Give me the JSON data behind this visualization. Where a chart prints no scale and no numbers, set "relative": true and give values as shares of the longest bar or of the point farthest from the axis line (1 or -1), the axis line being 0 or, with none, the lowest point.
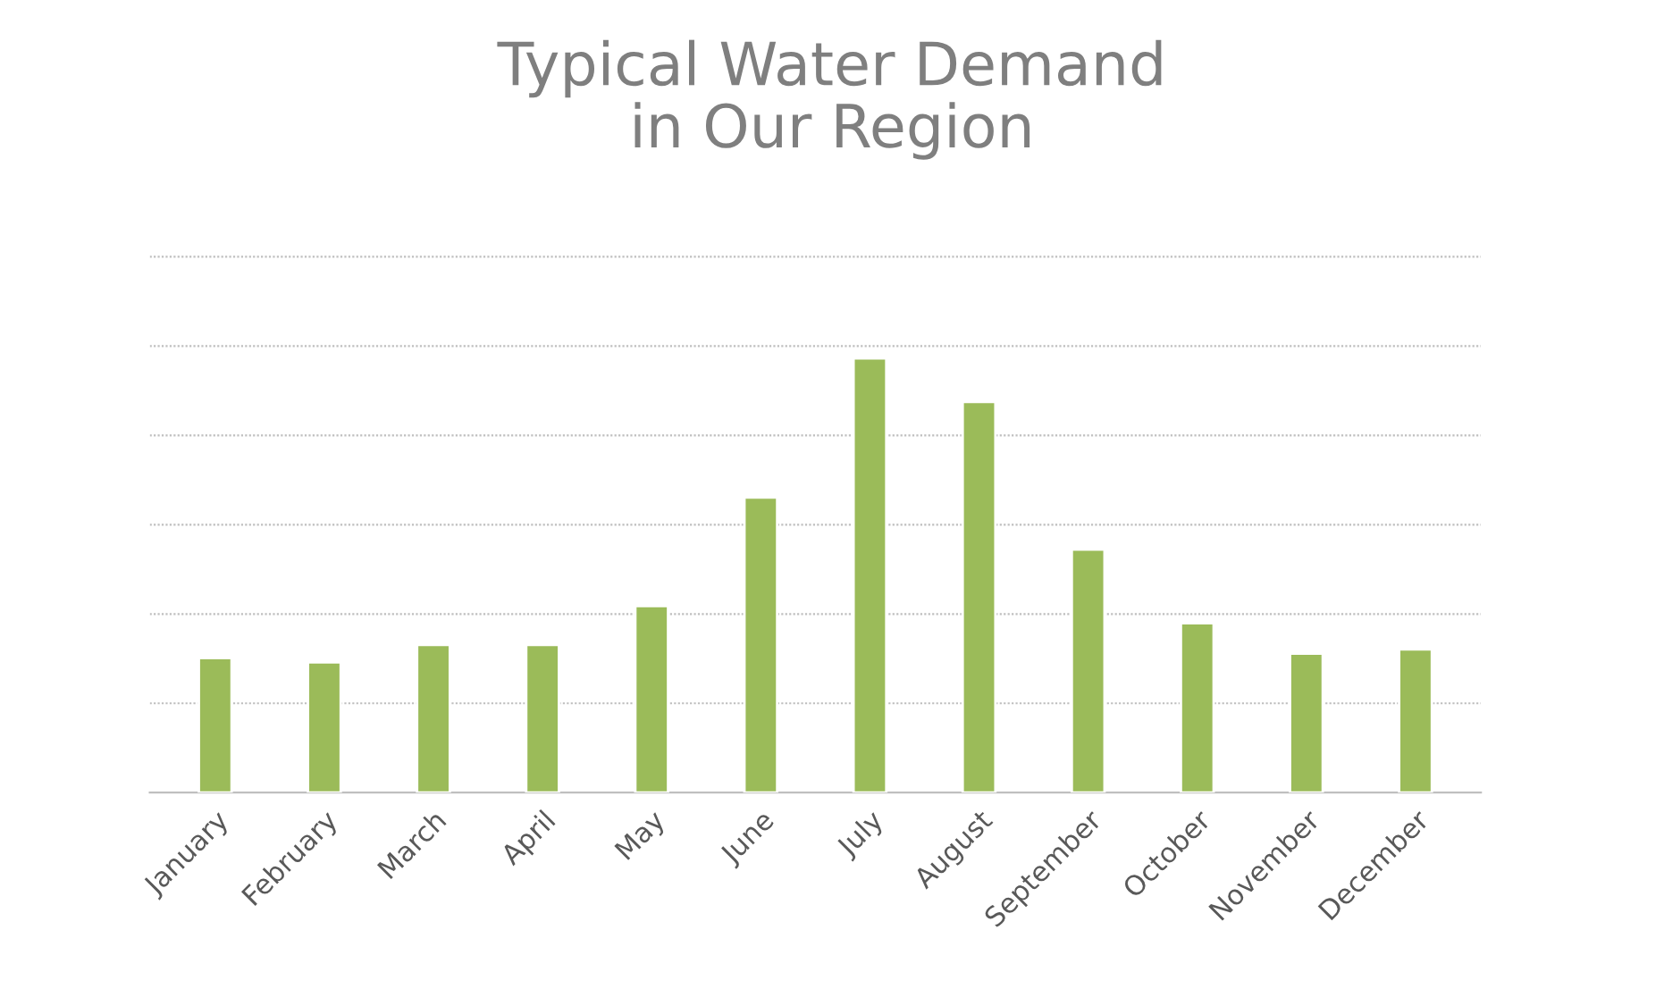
{
  "chart_data": {
    "type": "bar",
    "title": "Typical Water Demand\nin Our Region",
    "categories": [
      "January",
      "February",
      "March",
      "April",
      "May",
      "June",
      "July",
      "August",
      "September",
      "October",
      "November",
      "December"
    ],
    "values": [
      0.31,
      0.3,
      0.34,
      0.34,
      0.43,
      0.68,
      1,
      0.9,
      0.56,
      0.39,
      0.32,
      0.33
    ],
    "color": "#9bbb59",
    "relative": true,
    "grid": "y",
    "legend": false
  }
}
